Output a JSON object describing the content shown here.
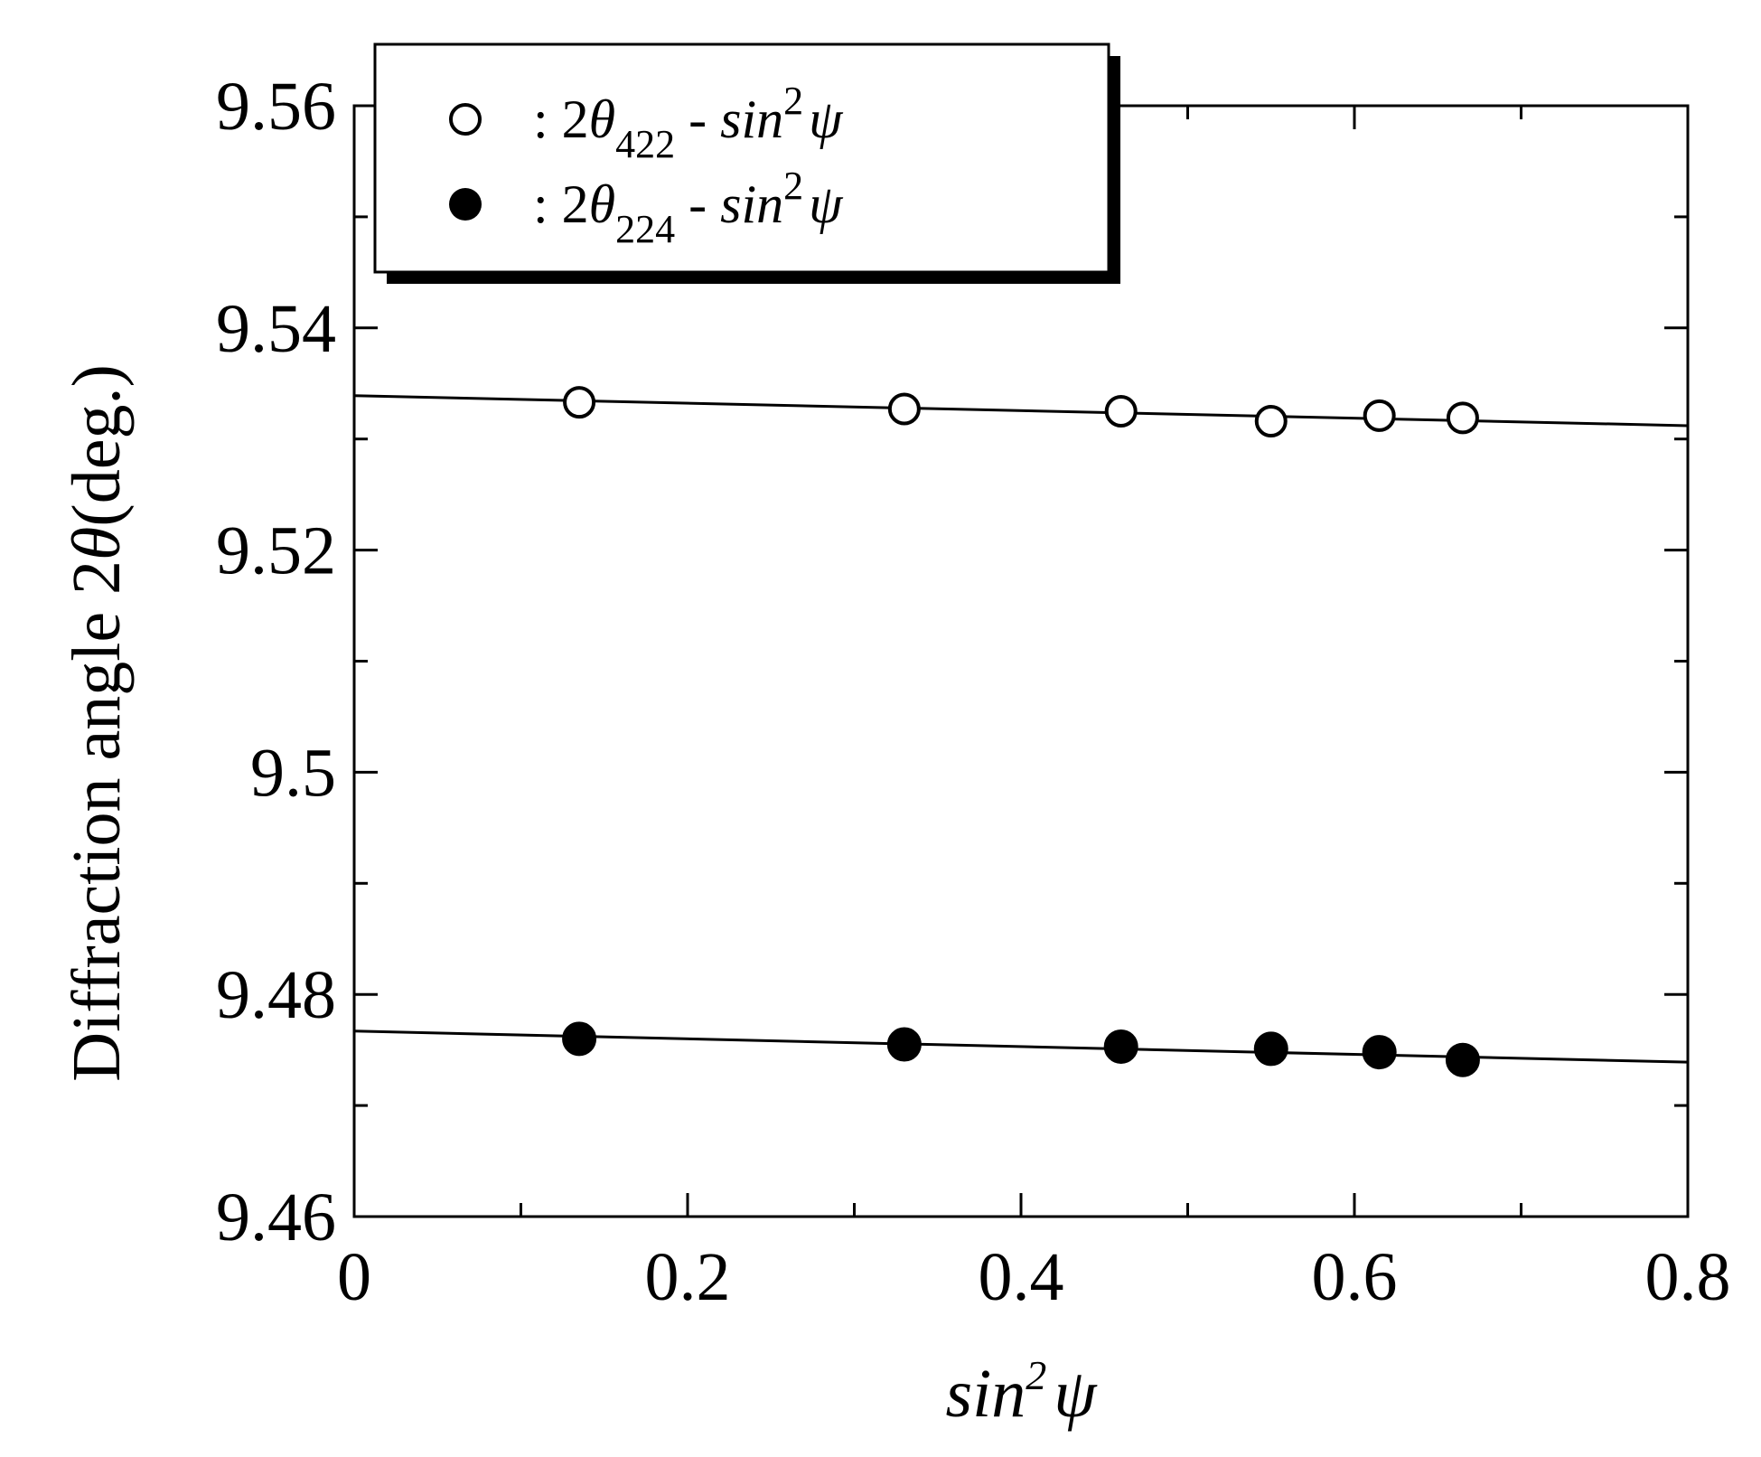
{
  "chart_data": {
    "type": "scatter",
    "xlabel": {
      "base": "sin",
      "sup": "2",
      "symbol": "ψ"
    },
    "ylabel": {
      "prefix": "Diffraction angle 2",
      "symbol": "θ",
      "suffix": "(deg.)"
    },
    "xlim": [
      0,
      0.8
    ],
    "ylim": [
      9.46,
      9.56
    ],
    "x_ticks": [
      0,
      0.2,
      0.4,
      0.6,
      0.8
    ],
    "x_tick_labels": [
      "0",
      "0.2",
      "0.4",
      "0.6",
      "0.8"
    ],
    "x_minor_step": 0.1,
    "y_ticks": [
      9.46,
      9.48,
      9.5,
      9.52,
      9.54,
      9.56
    ],
    "y_tick_labels": [
      "9.46",
      "9.48",
      "9.5",
      "9.52",
      "9.54",
      "9.56"
    ],
    "y_minor_step": 0.01,
    "grid": false,
    "legend_position": "top-left",
    "series": [
      {
        "legend": {
          "prefix": ": 2",
          "theta": "θ",
          "sub": "422",
          "dash": " - sin",
          "sup": "2",
          "psi": "ψ"
        },
        "marker": "open-circle",
        "x": [
          0.135,
          0.33,
          0.46,
          0.55,
          0.615,
          0.665
        ],
        "y": [
          9.5333,
          9.5327,
          9.5325,
          9.5316,
          9.5321,
          9.5319
        ],
        "fit": {
          "x": [
            0,
            0.8
          ],
          "y": [
            9.5339,
            9.5312
          ]
        }
      },
      {
        "legend": {
          "prefix": ": 2",
          "theta": "θ",
          "sub": "224",
          "dash": " - sin",
          "sup": "2",
          "psi": "ψ"
        },
        "marker": "filled-circle",
        "x": [
          0.135,
          0.33,
          0.46,
          0.55,
          0.615,
          0.665
        ],
        "y": [
          9.476,
          9.4755,
          9.4753,
          9.4751,
          9.4748,
          9.4741
        ],
        "fit": {
          "x": [
            0,
            0.8
          ],
          "y": [
            9.4767,
            9.4739
          ]
        }
      }
    ]
  }
}
